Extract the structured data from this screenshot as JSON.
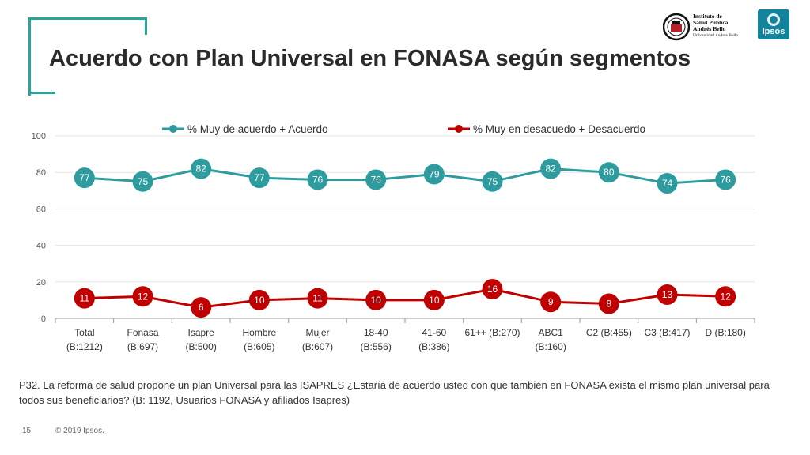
{
  "title": "Acuerdo con Plan Universal en FONASA según segmentos",
  "logos": {
    "institute": [
      "Instituto de",
      "Salud Pública",
      "Andrés Bello",
      "Universidad Andrés Bello"
    ],
    "ipsos": "Ipsos"
  },
  "colors": {
    "accent": "#2aa39b",
    "series_agree": "#2e9c9e",
    "series_disagree": "#c00000",
    "ipsos": "#12839a"
  },
  "chart_data": {
    "type": "line",
    "categories": [
      [
        "Total",
        "(B:1212)"
      ],
      [
        "Fonasa",
        "(B:697)"
      ],
      [
        "Isapre",
        "(B:500)"
      ],
      [
        "Hombre",
        "(B:605)"
      ],
      [
        "Mujer",
        "(B:607)"
      ],
      [
        "18-40",
        "(B:556)"
      ],
      [
        "41-60",
        "(B:386)"
      ],
      [
        "61++ (B:270)"
      ],
      [
        "ABC1",
        "(B:160)"
      ],
      [
        "C2 (B:455)"
      ],
      [
        "C3 (B:417)"
      ],
      [
        "D (B:180)"
      ]
    ],
    "series": [
      {
        "name": "% Muy de acuerdo + Acuerdo",
        "values": [
          77,
          75,
          82,
          77,
          76,
          76,
          79,
          75,
          82,
          80,
          74,
          76
        ]
      },
      {
        "name": "% Muy en desacuedo + Desacuerdo",
        "values": [
          11,
          12,
          6,
          10,
          11,
          10,
          10,
          16,
          9,
          8,
          13,
          12
        ]
      }
    ],
    "ylim": [
      0,
      100
    ],
    "yticks": [
      0,
      20,
      40,
      60,
      80,
      100
    ],
    "grid": true,
    "legend": "top"
  },
  "footnote": "P32. La reforma de salud propone un plan Universal para las ISAPRES ¿Estaría de acuerdo usted con que también en FONASA exista el mismo plan universal para todos sus beneficiarios? (B: 1192, Usuarios FONASA y afiliados Isapres)",
  "footer": {
    "page": "15",
    "copyright": "© 2019 Ipsos."
  }
}
